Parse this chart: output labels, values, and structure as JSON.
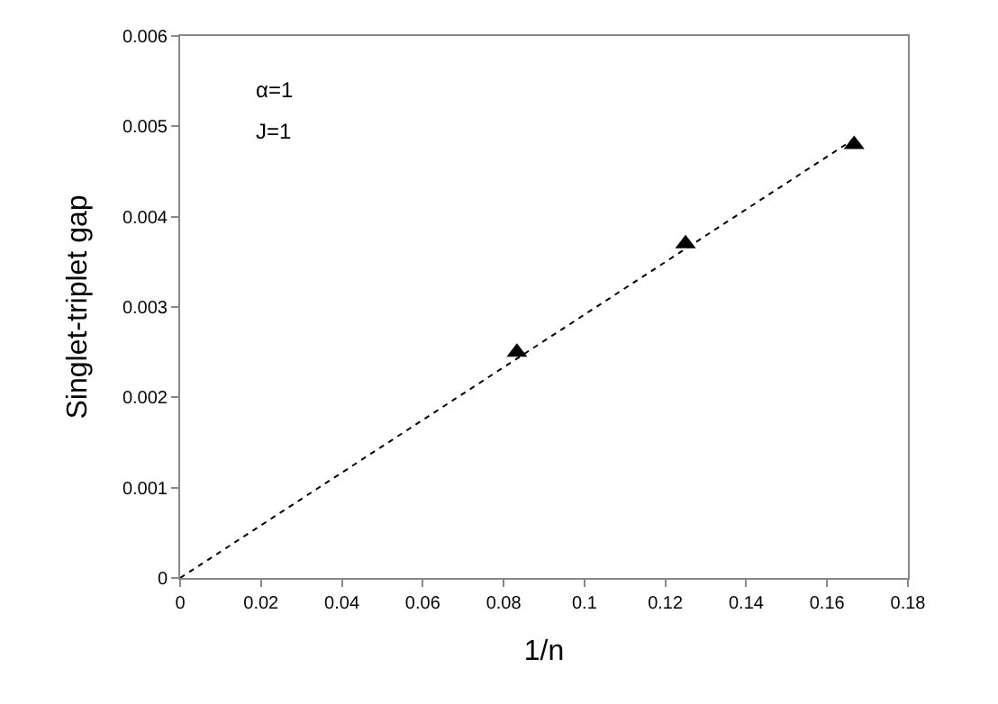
{
  "chart_data": {
    "type": "scatter",
    "xlabel": "1/n",
    "ylabel": "Singlet-triplet gap",
    "annotations": [
      "α=1",
      "J=1"
    ],
    "series": [
      {
        "color": "#000000",
        "marker": "triangle",
        "x": [
          0.0833,
          0.125,
          0.1667
        ],
        "values": [
          0.0025,
          0.0037,
          0.0048
        ]
      },
      {
        "type": "line",
        "color": "#000000",
        "line_style": "dotted",
        "marker": "none",
        "x": [
          0,
          0.1667
        ],
        "values": [
          0,
          0.00486
        ]
      }
    ],
    "xlim": [
      0,
      0.18
    ],
    "xticks": [
      0,
      0.02,
      0.04,
      0.06,
      0.08,
      0.1,
      0.12,
      0.14,
      0.16,
      0.18
    ],
    "ylim": [
      0,
      0.006
    ],
    "yticks": [
      0,
      0.001,
      0.002,
      0.003,
      0.004,
      0.005,
      0.006
    ],
    "grid": false
  }
}
